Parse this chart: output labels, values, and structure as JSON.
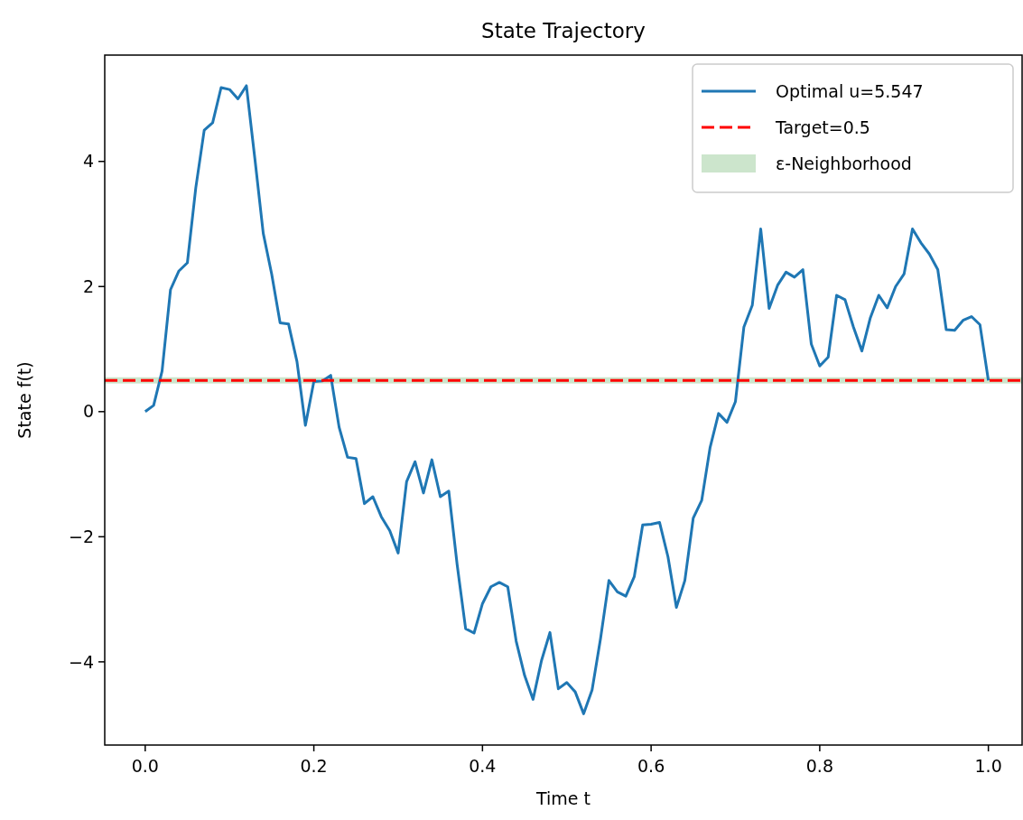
{
  "chart_data": {
    "type": "line",
    "title": "State Trajectory",
    "xlabel": "Time t",
    "ylabel": "State f(t)",
    "x": [
      0,
      0.01,
      0.02,
      0.03,
      0.04,
      0.05,
      0.06,
      0.07,
      0.08,
      0.09,
      0.1,
      0.11,
      0.12,
      0.13,
      0.14,
      0.15,
      0.16,
      0.17,
      0.18,
      0.19,
      0.2,
      0.21,
      0.22,
      0.23,
      0.24,
      0.25,
      0.26,
      0.27,
      0.28,
      0.29,
      0.3,
      0.31,
      0.32,
      0.33,
      0.34,
      0.35,
      0.36,
      0.37,
      0.38,
      0.39,
      0.4,
      0.41,
      0.42,
      0.43,
      0.44,
      0.45,
      0.46,
      0.47,
      0.48,
      0.49,
      0.5,
      0.51,
      0.52,
      0.53,
      0.54,
      0.55,
      0.56,
      0.57,
      0.58,
      0.59,
      0.6,
      0.61,
      0.62,
      0.63,
      0.64,
      0.65,
      0.66,
      0.67,
      0.68,
      0.69,
      0.7,
      0.71,
      0.72,
      0.73,
      0.74,
      0.75,
      0.76,
      0.77,
      0.78,
      0.79,
      0.8,
      0.81,
      0.82,
      0.83,
      0.84,
      0.85,
      0.86,
      0.87,
      0.88,
      0.89,
      0.9,
      0.91,
      0.92,
      0.93,
      0.94,
      0.95,
      0.96,
      0.97,
      0.98,
      0.99,
      1
    ],
    "series": [
      {
        "name": "Optimal u=5.547",
        "color": "#1f77b4",
        "values": [
          0,
          0.1,
          0.65,
          1.95,
          2.25,
          2.38,
          3.58,
          4.5,
          4.62,
          5.18,
          5.15,
          5,
          5.21,
          4.05,
          2.85,
          2.2,
          1.42,
          1.4,
          0.8,
          -0.22,
          0.48,
          0.49,
          0.58,
          -0.25,
          -0.73,
          -0.75,
          -1.47,
          -1.36,
          -1.68,
          -1.9,
          -2.26,
          -1.12,
          -0.8,
          -1.3,
          -0.77,
          -1.36,
          -1.27,
          -2.45,
          -3.47,
          -3.54,
          -3.07,
          -2.8,
          -2.73,
          -2.8,
          -3.67,
          -4.22,
          -4.6,
          -3.98,
          -3.53,
          -4.43,
          -4.33,
          -4.48,
          -4.83,
          -4.45,
          -3.63,
          -2.7,
          -2.88,
          -2.95,
          -2.64,
          -1.81,
          -1.8,
          -1.77,
          -2.32,
          -3.13,
          -2.7,
          -1.7,
          -1.42,
          -0.57,
          -0.03,
          -0.17,
          0.16,
          1.35,
          1.7,
          2.92,
          1.65,
          2.02,
          2.23,
          2.15,
          2.27,
          1.08,
          0.73,
          0.87,
          1.86,
          1.79,
          1.35,
          0.97,
          1.5,
          1.86,
          1.66,
          2,
          2.2,
          2.92,
          2.7,
          2.52,
          2.27,
          1.31,
          1.3,
          1.46,
          1.52,
          1.39,
          0.5
        ]
      }
    ],
    "ref_lines": [
      {
        "axis": "y",
        "value": 0.5,
        "label": "Target=0.5",
        "color": "#ff0000",
        "line_style": "dashed"
      }
    ],
    "bands": [
      {
        "axis": "y",
        "from": 0.45,
        "to": 0.55,
        "label": "ε-Neighborhood",
        "color": "#cce5cc"
      }
    ],
    "xlim": [
      -0.048,
      1.04
    ],
    "ylim": [
      -5.33,
      5.7
    ],
    "xticks": [
      {
        "value": 0,
        "label": "0.0"
      },
      {
        "value": 0.2,
        "label": "0.2"
      },
      {
        "value": 0.4,
        "label": "0.4"
      },
      {
        "value": 0.6,
        "label": "0.6"
      },
      {
        "value": 0.8,
        "label": "0.8"
      },
      {
        "value": 1,
        "label": "1.0"
      }
    ],
    "yticks": [
      {
        "value": -4,
        "label": "−4"
      },
      {
        "value": -2,
        "label": "−2"
      },
      0,
      2,
      4
    ],
    "legend": "top right",
    "grid": false,
    "marker": "none",
    "line_style": "solid"
  }
}
